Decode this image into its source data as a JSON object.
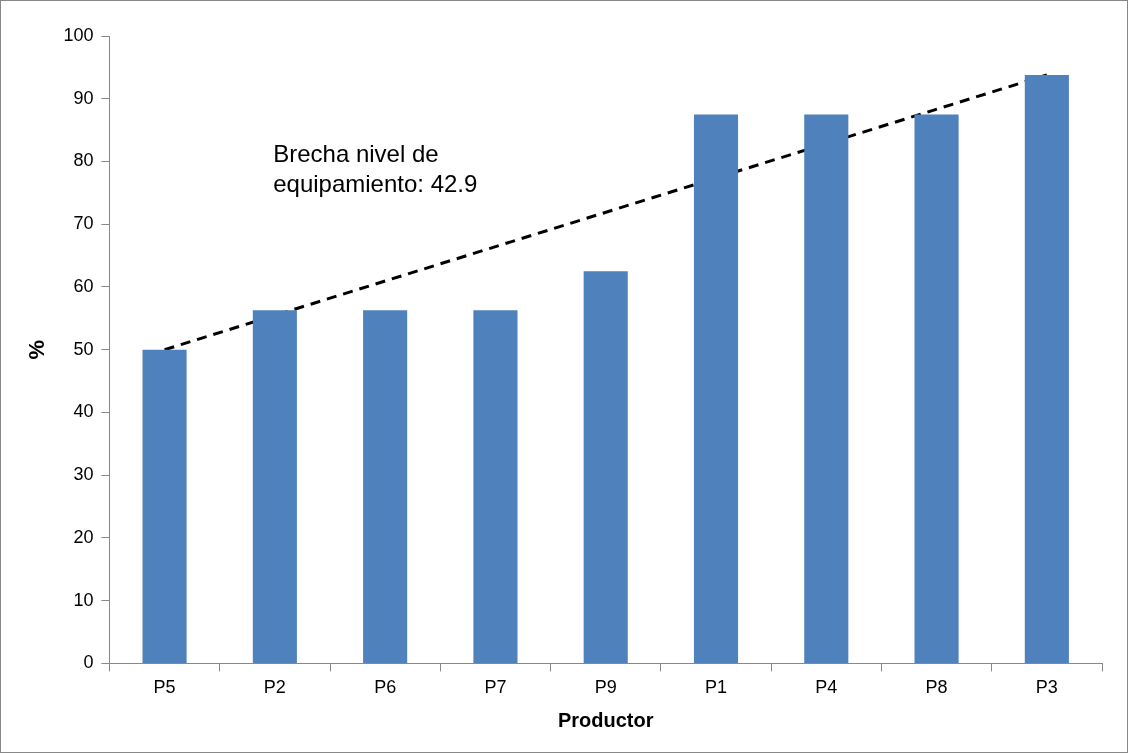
{
  "chart_data": {
    "type": "bar",
    "xlabel": "Productor",
    "ylabel": "%",
    "categories": [
      "P5",
      "P2",
      "P6",
      "P7",
      "P9",
      "P1",
      "P4",
      "P8",
      "P3"
    ],
    "series": [
      {
        "color": "#4f81bd",
        "values": [
          50,
          56.3,
          56.3,
          56.3,
          62.5,
          87.5,
          87.5,
          87.5,
          93.8
        ]
      },
      {
        "type": "line",
        "color": "#000000",
        "x": [
          "P5",
          "P3"
        ],
        "values": [
          50,
          93.8
        ],
        "line_style": "dashed",
        "marker": "none"
      }
    ],
    "ylim": [
      0,
      100
    ],
    "yticks": [
      0,
      10,
      20,
      30,
      40,
      50,
      60,
      70,
      80,
      90,
      100
    ],
    "grid": false,
    "legend": false,
    "annotations": [
      "Brecha nivel de equipamiento: 42.9"
    ]
  }
}
